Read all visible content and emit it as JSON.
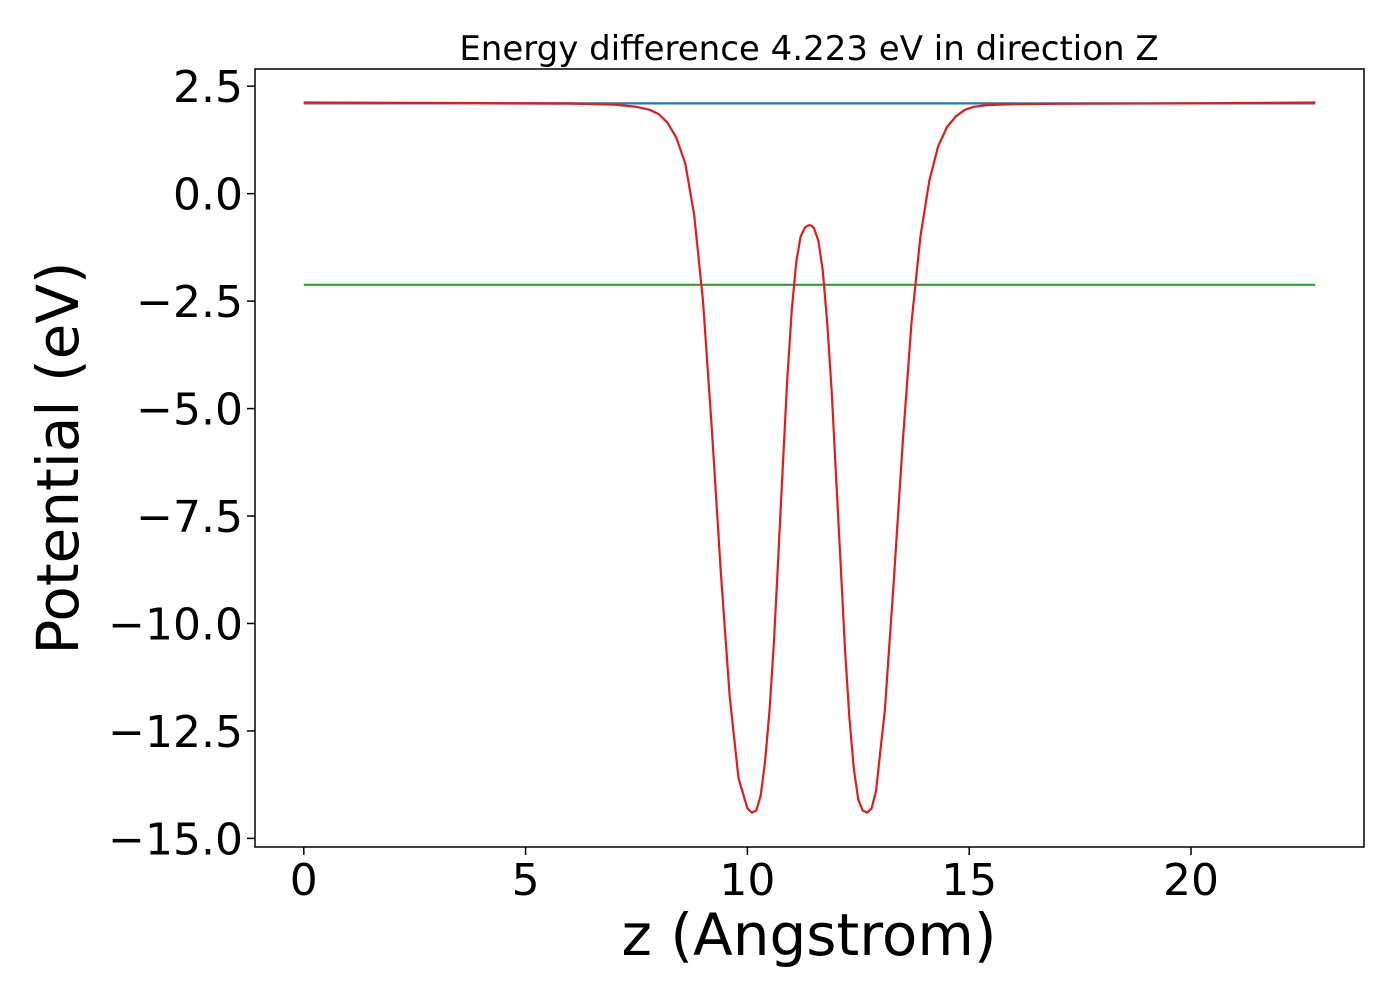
{
  "chart_data": {
    "type": "line",
    "title": "Energy difference 4.223 eV in direction Z",
    "xlabel": "z (Angstrom)",
    "ylabel": "Potential (eV)",
    "xlim": [
      -1.1,
      23.9
    ],
    "ylim": [
      -15.2,
      2.9
    ],
    "xticks": [
      0,
      5,
      10,
      15,
      20
    ],
    "xtick_labels": [
      "0",
      "5",
      "10",
      "15",
      "20"
    ],
    "yticks": [
      2.5,
      0.0,
      -2.5,
      -5.0,
      -7.5,
      -10.0,
      -12.5,
      -15.0
    ],
    "ytick_labels": [
      "2.5",
      "0.0",
      "−2.5",
      "−5.0",
      "−7.5",
      "−10.0",
      "−12.5",
      "−15.0"
    ],
    "grid": false,
    "legend": "none",
    "series": [
      {
        "color": "#1f77b4",
        "x": [
          0,
          22.8
        ],
        "y": [
          2.1,
          2.1
        ]
      },
      {
        "color": "#2ca02c",
        "x": [
          0,
          22.8
        ],
        "y": [
          -2.12,
          -2.12
        ]
      },
      {
        "color": "#9467bd",
        "x": [
          0,
          2,
          4,
          6,
          7
        ],
        "y": [
          2.12,
          2.11,
          2.1,
          2.09,
          2.08
        ]
      },
      {
        "color": "#e41a1c",
        "x": [
          0,
          3,
          6,
          7,
          7.5,
          7.8,
          8.0,
          8.2,
          8.4,
          8.6,
          8.8,
          9.0,
          9.2,
          9.4,
          9.6,
          9.8,
          10.0,
          10.1,
          10.2,
          10.3,
          10.4,
          10.5,
          10.6,
          10.7,
          10.8,
          10.9,
          11.0,
          11.1,
          11.2,
          11.3,
          11.4,
          11.45,
          11.5,
          11.6,
          11.7,
          11.8,
          11.9,
          12.0,
          12.1,
          12.2,
          12.3,
          12.4,
          12.5,
          12.6,
          12.7,
          12.8,
          12.9,
          13.1,
          13.3,
          13.5,
          13.7,
          13.9,
          14.1,
          14.3,
          14.5,
          14.7,
          14.9,
          15.1,
          15.4,
          16,
          17,
          20,
          22.8
        ],
        "y": [
          2.12,
          2.11,
          2.1,
          2.07,
          2.02,
          1.95,
          1.85,
          1.65,
          1.3,
          0.7,
          -0.5,
          -2.5,
          -5.5,
          -8.8,
          -11.7,
          -13.6,
          -14.3,
          -14.4,
          -14.35,
          -14.0,
          -13.2,
          -12.0,
          -10.4,
          -8.4,
          -6.3,
          -4.3,
          -2.7,
          -1.6,
          -1.0,
          -0.78,
          -0.73,
          -0.75,
          -0.8,
          -1.1,
          -1.8,
          -3.0,
          -4.6,
          -6.6,
          -8.6,
          -10.6,
          -12.2,
          -13.4,
          -14.1,
          -14.35,
          -14.4,
          -14.3,
          -13.9,
          -12.0,
          -9.0,
          -5.8,
          -3.0,
          -1.0,
          0.3,
          1.1,
          1.55,
          1.8,
          1.95,
          2.02,
          2.06,
          2.08,
          2.09,
          2.1,
          2.12
        ]
      }
    ]
  }
}
